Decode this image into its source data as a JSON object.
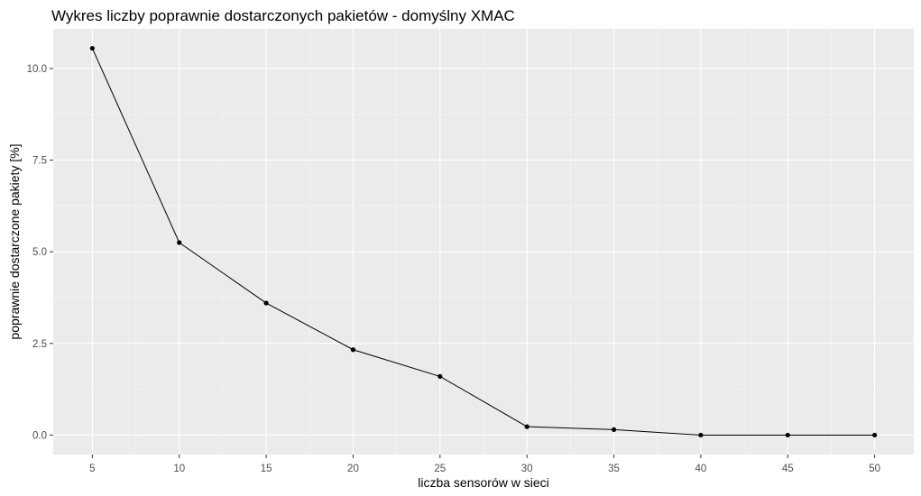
{
  "chart_data": {
    "type": "line",
    "title": "Wykres liczby poprawnie dostarczonych pakietów - domyślny XMAC",
    "xlabel": "liczba sensorów w sieci",
    "ylabel": "poprawnie dostarczone pakiety [%]",
    "x": [
      5,
      10,
      15,
      20,
      25,
      30,
      35,
      40,
      45,
      50
    ],
    "series": [
      {
        "values": [
          10.55,
          5.25,
          3.6,
          2.33,
          1.6,
          0.23,
          0.15,
          0.0,
          0.0,
          0.0
        ]
      }
    ],
    "xlim": [
      2.75,
      52.25
    ],
    "ylim": [
      -0.53,
      11.08
    ],
    "x_ticks": [
      5,
      10,
      15,
      20,
      25,
      30,
      35,
      40,
      45,
      50
    ],
    "x_tick_labels": [
      "5",
      "10",
      "15",
      "20",
      "25",
      "30",
      "35",
      "40",
      "45",
      "50"
    ],
    "y_ticks": [
      0,
      2.5,
      5,
      7.5,
      10
    ],
    "y_tick_labels": [
      "0.0",
      "2.5",
      "5.0",
      "7.5",
      "10.0"
    ],
    "grid": true,
    "legend": "none",
    "colors": {
      "panel_background": "#ebebeb",
      "grid_major": "#ffffff",
      "grid_minor": "#f5f5f5",
      "line": "#000000",
      "points": "#000000",
      "tick_text": "#4d4d4d"
    }
  }
}
